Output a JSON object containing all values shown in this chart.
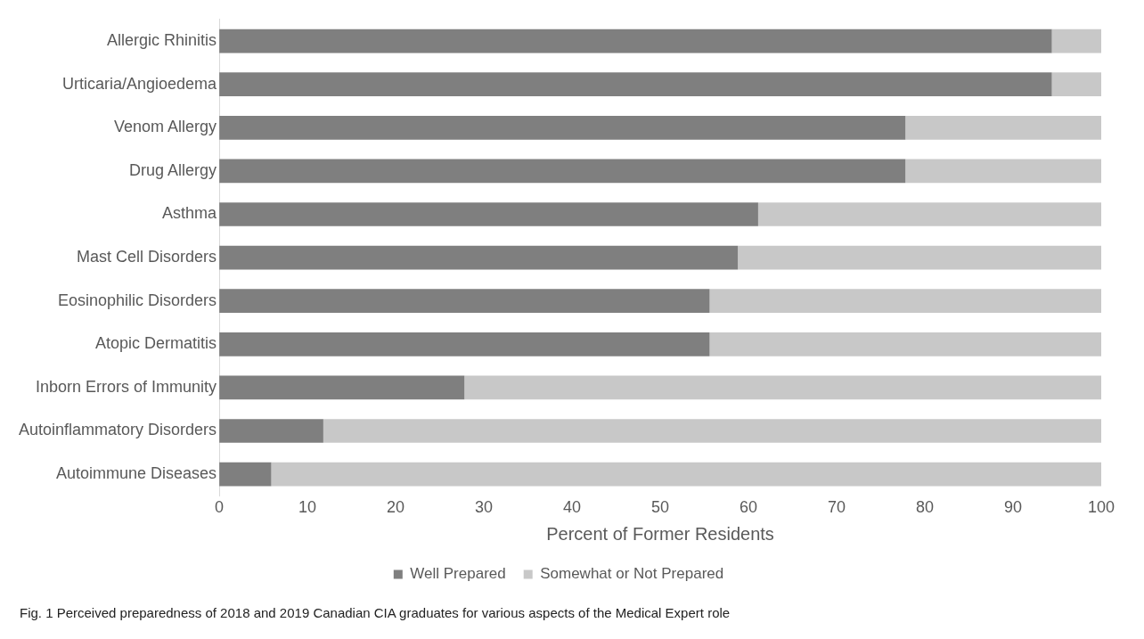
{
  "chart_data": {
    "type": "bar",
    "orientation": "horizontal",
    "stacked": true,
    "categories": [
      "Allergic Rhinitis",
      "Urticaria/Angioedema",
      "Venom Allergy",
      "Drug Allergy",
      "Asthma",
      "Mast Cell Disorders",
      "Eosinophilic Disorders",
      "Atopic Dermatitis",
      "Inborn Errors of Immunity",
      "Autoinflammatory Disorders",
      "Autoimmune Diseases"
    ],
    "series": [
      {
        "name": "Well Prepared",
        "color": "#7f7f7f",
        "values": [
          94.4,
          94.4,
          77.8,
          77.8,
          61.1,
          58.8,
          55.6,
          55.6,
          27.8,
          11.8,
          5.9
        ]
      },
      {
        "name": "Somewhat or Not Prepared",
        "color": "#c8c8c8",
        "values": [
          5.6,
          5.6,
          22.2,
          22.2,
          38.9,
          41.2,
          44.4,
          44.4,
          72.2,
          88.2,
          94.1
        ]
      }
    ],
    "xlim": [
      0,
      100
    ],
    "xticks": [
      0,
      10,
      20,
      30,
      40,
      50,
      60,
      70,
      80,
      90,
      100
    ],
    "xlabel": "Percent of Former Residents",
    "legend": "bottom",
    "grid": false,
    "annotations": [
      "Fig. 1  Perceived preparedness of 2018 and 2019 Canadian CIA graduates for various aspects of the Medical Expert role"
    ]
  }
}
